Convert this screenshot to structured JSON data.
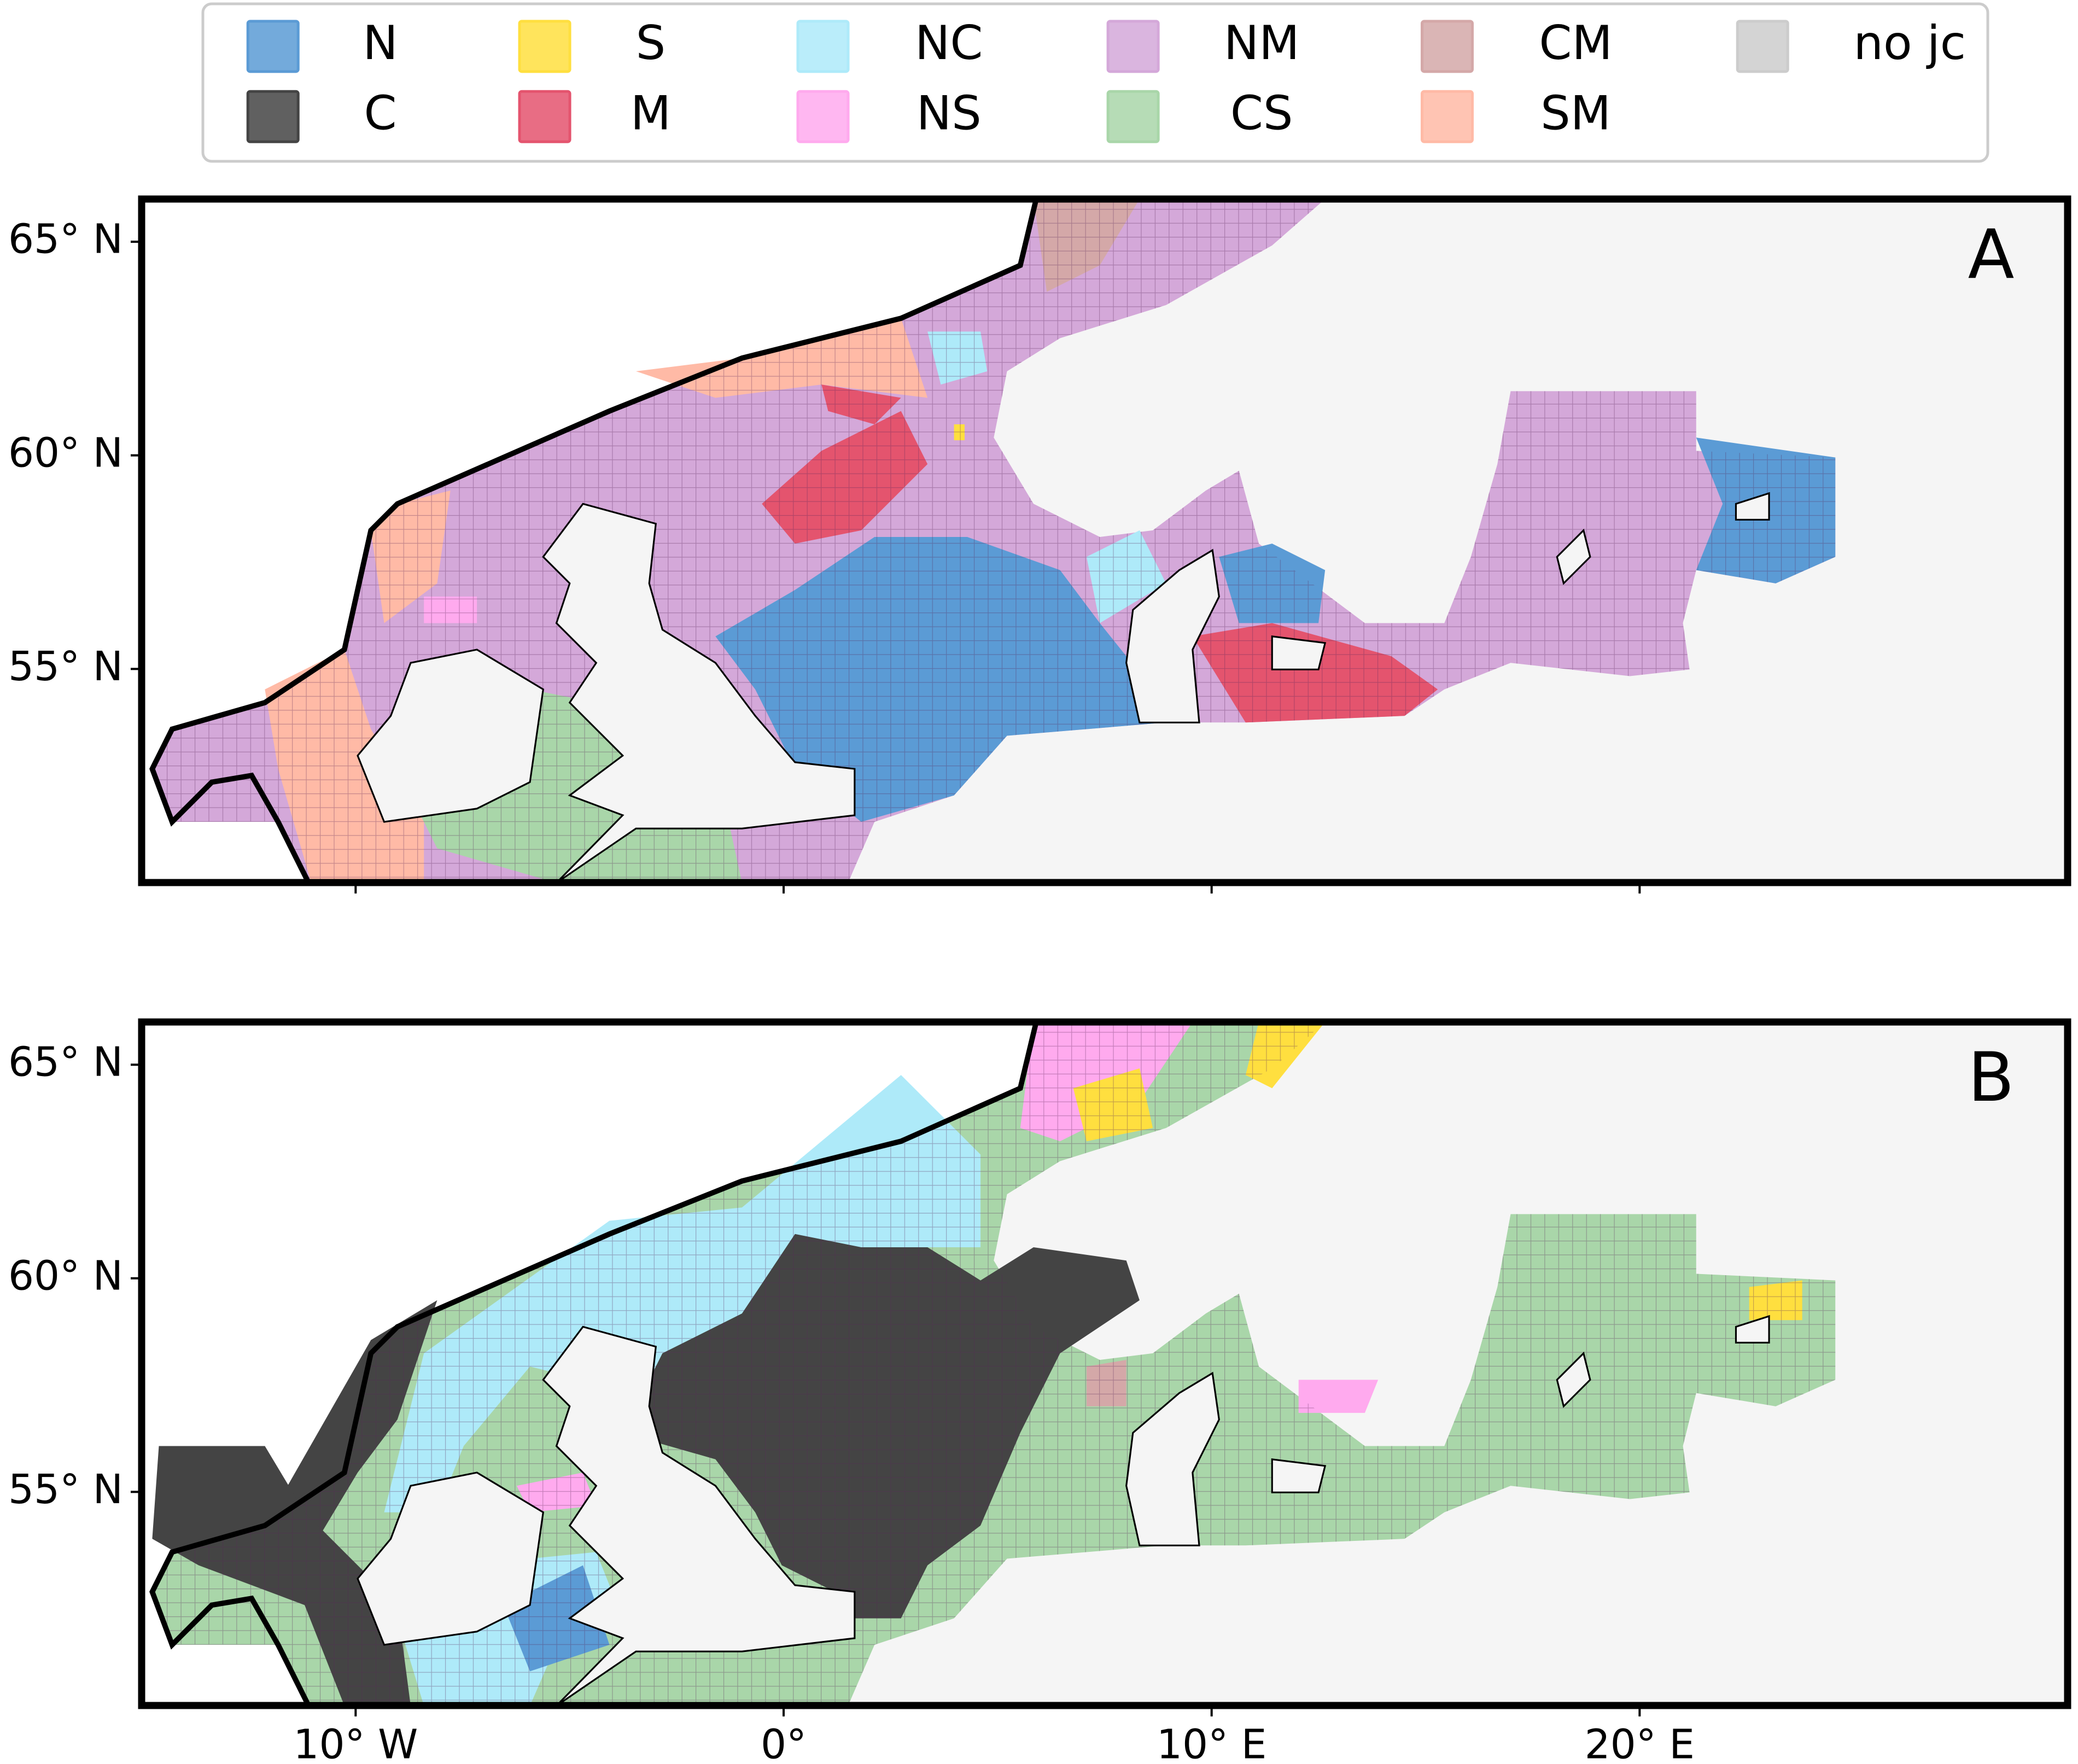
{
  "map": {
    "legend": [
      {
        "name": "N",
        "color": "#5b9bd5"
      },
      {
        "name": "C",
        "color": "#444444"
      },
      {
        "name": "S",
        "color": "#ffdf3f"
      },
      {
        "name": "M",
        "color": "#e4546e"
      },
      {
        "name": "NC",
        "color": "#aeeaf9"
      },
      {
        "name": "NS",
        "color": "#ffaaee"
      },
      {
        "name": "NM",
        "color": "#d4a8d9"
      },
      {
        "name": "CS",
        "color": "#a9d6a9"
      },
      {
        "name": "CM",
        "color": "#d4a8a8"
      },
      {
        "name": "SM",
        "color": "#ffbaa6"
      },
      {
        "name": "no jc",
        "color": "#cccccc"
      }
    ],
    "panels": [
      {
        "label": "A"
      },
      {
        "label": "B"
      }
    ],
    "xlim": [
      -15,
      30
    ],
    "ylim": [
      50,
      66
    ],
    "xticks": [
      {
        "value": -10,
        "label": "10° W"
      },
      {
        "value": 0,
        "label": "0°"
      },
      {
        "value": 10,
        "label": "10° E"
      },
      {
        "value": 20,
        "label": "20° E"
      }
    ],
    "yticks": [
      {
        "value": 55,
        "label": "55° N"
      },
      {
        "value": 60,
        "label": "60° N"
      },
      {
        "value": 65,
        "label": "65° N"
      }
    ]
  }
}
